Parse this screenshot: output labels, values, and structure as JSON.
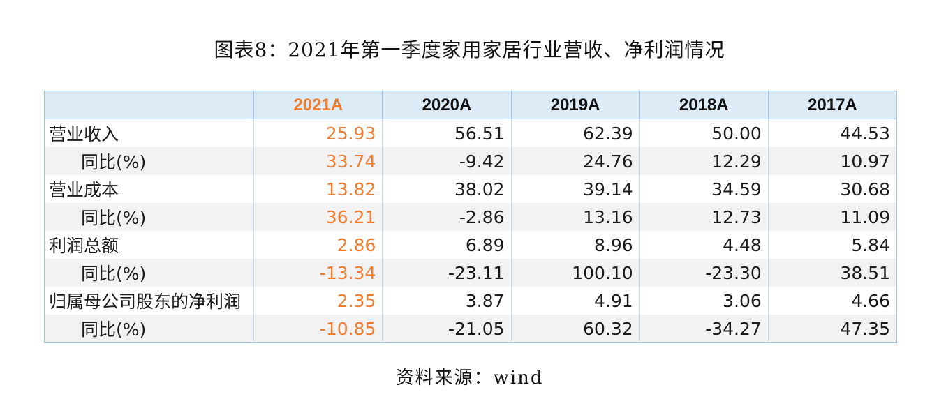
{
  "title": "图表8：2021年第一季度家用家居行业营收、净利润情况",
  "table": {
    "headers": [
      "",
      "2021A",
      "2020A",
      "2019A",
      "2018A",
      "2017A"
    ],
    "rows": [
      {
        "label": "营业收入",
        "values": [
          "25.93",
          "56.51",
          "62.39",
          "50.00",
          "44.53"
        ]
      },
      {
        "label": "同比(%)",
        "values": [
          "33.74",
          "-9.42",
          "24.76",
          "12.29",
          "10.97"
        ]
      },
      {
        "label": "营业成本",
        "values": [
          "13.82",
          "38.02",
          "39.14",
          "34.59",
          "30.68"
        ]
      },
      {
        "label": "同比(%)",
        "values": [
          "36.21",
          "-2.86",
          "13.16",
          "12.73",
          "11.09"
        ]
      },
      {
        "label": "利润总额",
        "values": [
          "2.86",
          "6.89",
          "8.96",
          "4.48",
          "5.84"
        ]
      },
      {
        "label": "同比(%)",
        "values": [
          "-13.34",
          "-23.11",
          "100.10",
          "-23.30",
          "38.51"
        ]
      },
      {
        "label": "归属母公司股东的净利润",
        "values": [
          "2.35",
          "3.87",
          "4.91",
          "3.06",
          "4.66"
        ]
      },
      {
        "label": "同比(%)",
        "values": [
          "-10.85",
          "-21.05",
          "60.32",
          "-34.27",
          "47.35"
        ]
      }
    ]
  },
  "colors": {
    "highlight": "#ed7d31",
    "header_bg": "#ddebf7",
    "border": "#9dc3e6",
    "stripe": "#f2f2f2"
  },
  "source": "资料来源：wind"
}
